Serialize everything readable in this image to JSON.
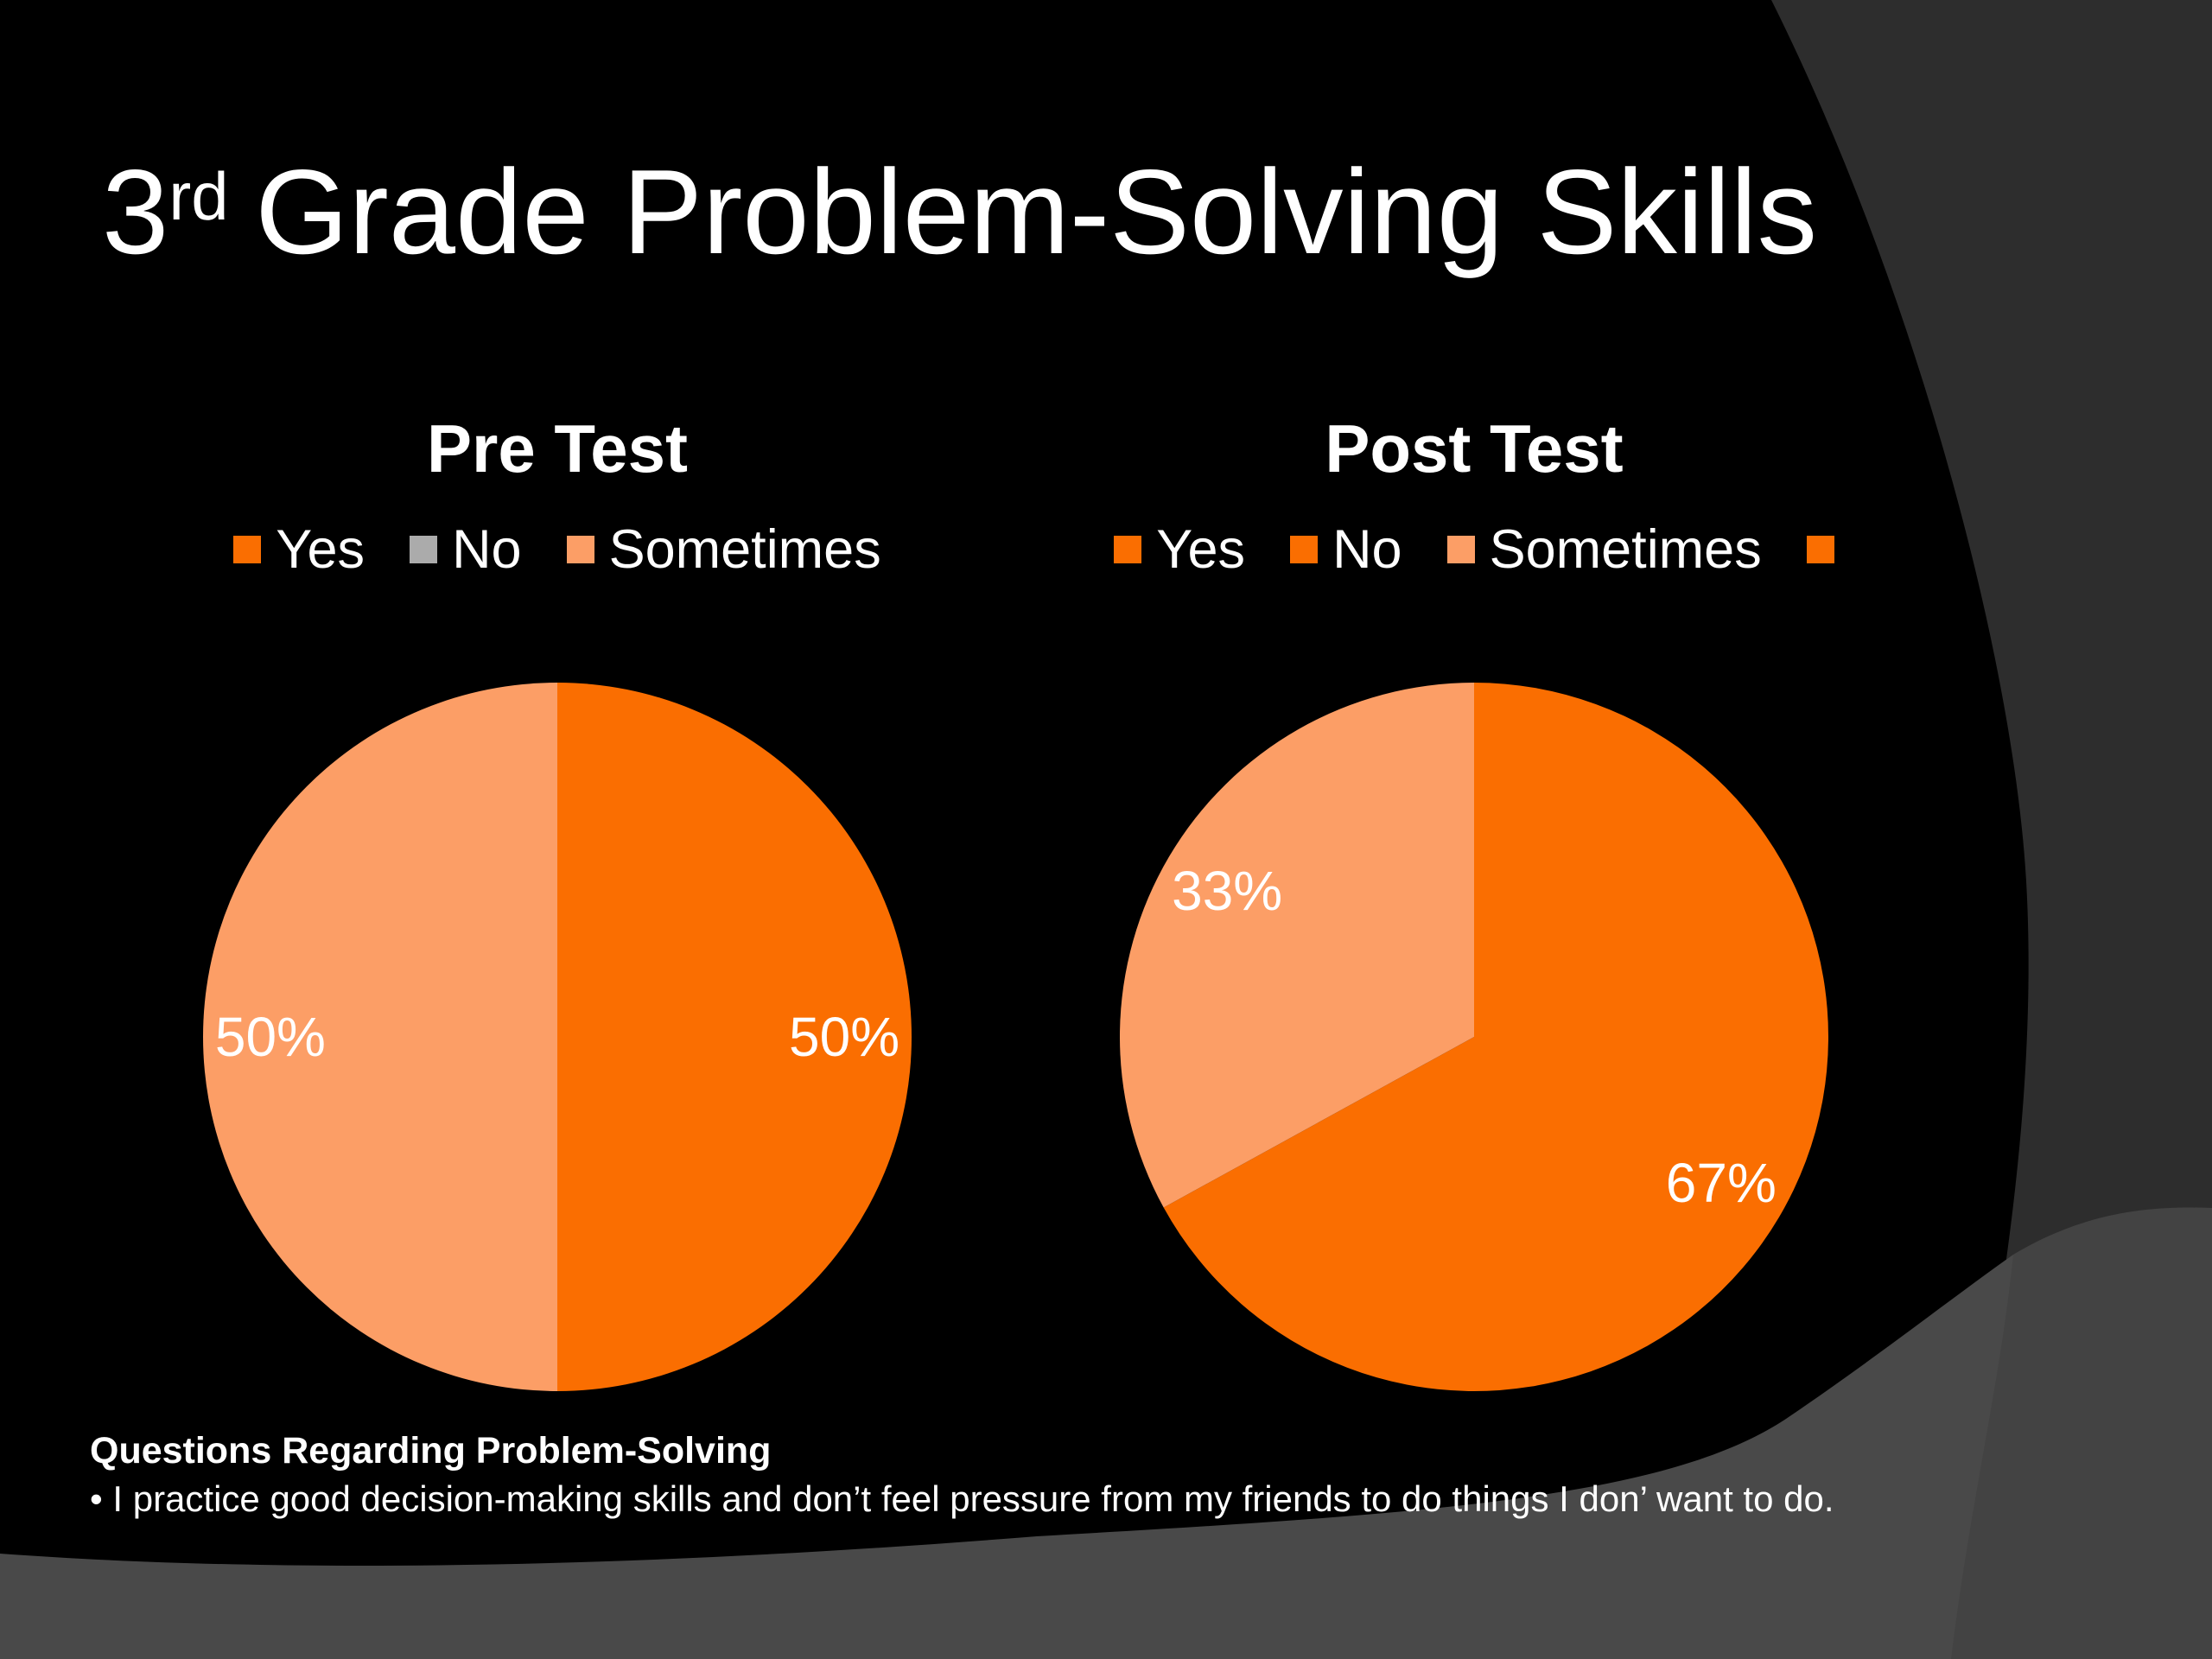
{
  "slide": {
    "title": {
      "prefix": "3",
      "superscript": "rd",
      "rest": " Grade Problem-Solving Skills"
    },
    "footer": {
      "heading": "Questions Regarding Problem-Solving",
      "bullet": "• I practice good decision-making skills and don’t feel pressure from my friends to do things I don’ want to do."
    },
    "colors": {
      "background": "#000000",
      "corner_dark": "#2d2d2d",
      "swoosh_gray": "#434343",
      "swoosh_highlight": "rgba(255,255,255,0.035)",
      "text_white": "#ffffff",
      "accent_orange": "#FA6E01",
      "accent_peach": "#FC9E66",
      "accent_gray": "#ABABAB"
    }
  },
  "chart_data": [
    {
      "type": "pie",
      "title": "Pre Test",
      "categories": [
        "Yes",
        "No",
        "Sometimes"
      ],
      "values": [
        50,
        0,
        50
      ],
      "slice_labels": [
        "50%",
        "",
        "50%"
      ],
      "slice_colors": [
        "#FA6E01",
        "#ABABAB",
        "#FC9E66"
      ],
      "legend": [
        {
          "label": "Yes",
          "color": "#FA6E01"
        },
        {
          "label": "No",
          "color": "#ABABAB"
        },
        {
          "label": "Sometimes",
          "color": "#FC9E66"
        }
      ],
      "legend_position": "top"
    },
    {
      "type": "pie",
      "title": "Post Test",
      "categories": [
        "Yes",
        "No",
        "Sometimes"
      ],
      "values": [
        67,
        0,
        33
      ],
      "slice_labels": [
        "67%",
        "",
        "33%"
      ],
      "slice_colors": [
        "#FA6E01",
        "#FA6E01",
        "#FC9E66"
      ],
      "legend": [
        {
          "label": "Yes",
          "color": "#FA6E01"
        },
        {
          "label": "No",
          "color": "#FA6E01"
        },
        {
          "label": "Sometimes",
          "color": "#FC9E66"
        },
        {
          "label": "",
          "color": "#FA6E01"
        }
      ],
      "legend_position": "top"
    }
  ]
}
